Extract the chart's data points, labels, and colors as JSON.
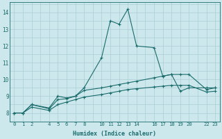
{
  "xlabel": "Humidex (Indice chaleur)",
  "background_color": "#cce8ec",
  "line_color": "#1a6b6b",
  "grid_color": "#aacdd4",
  "xlim": [
    -0.5,
    23.5
  ],
  "ylim": [
    7.6,
    14.6
  ],
  "xticks": [
    0,
    1,
    2,
    4,
    5,
    6,
    7,
    8,
    10,
    11,
    12,
    13,
    14,
    16,
    17,
    18,
    19,
    20,
    22,
    23
  ],
  "yticks": [
    8,
    9,
    10,
    11,
    12,
    13,
    14
  ],
  "series1_x": [
    0,
    1,
    2,
    4,
    5,
    6,
    7,
    8,
    10,
    11,
    12,
    13,
    14,
    16,
    17,
    18,
    19,
    20,
    22,
    23
  ],
  "series1_y": [
    8.0,
    8.0,
    8.5,
    8.3,
    9.0,
    8.9,
    9.0,
    9.5,
    11.3,
    13.5,
    13.3,
    14.2,
    12.0,
    11.9,
    10.2,
    10.3,
    9.3,
    9.5,
    9.5,
    9.5
  ],
  "series2_x": [
    0,
    1,
    2,
    4,
    5,
    6,
    7,
    8,
    10,
    11,
    12,
    13,
    14,
    16,
    17,
    18,
    19,
    20,
    22,
    23
  ],
  "series2_y": [
    8.0,
    8.0,
    8.5,
    8.25,
    8.8,
    8.85,
    9.0,
    9.35,
    9.5,
    9.6,
    9.7,
    9.8,
    9.9,
    10.1,
    10.2,
    10.3,
    10.3,
    10.3,
    9.4,
    9.5
  ],
  "series3_x": [
    0,
    1,
    2,
    4,
    5,
    6,
    7,
    8,
    10,
    11,
    12,
    13,
    14,
    16,
    17,
    18,
    19,
    20,
    22,
    23
  ],
  "series3_y": [
    8.0,
    8.0,
    8.35,
    8.15,
    8.5,
    8.65,
    8.8,
    8.95,
    9.1,
    9.2,
    9.3,
    9.4,
    9.45,
    9.55,
    9.6,
    9.65,
    9.65,
    9.65,
    9.25,
    9.3
  ]
}
